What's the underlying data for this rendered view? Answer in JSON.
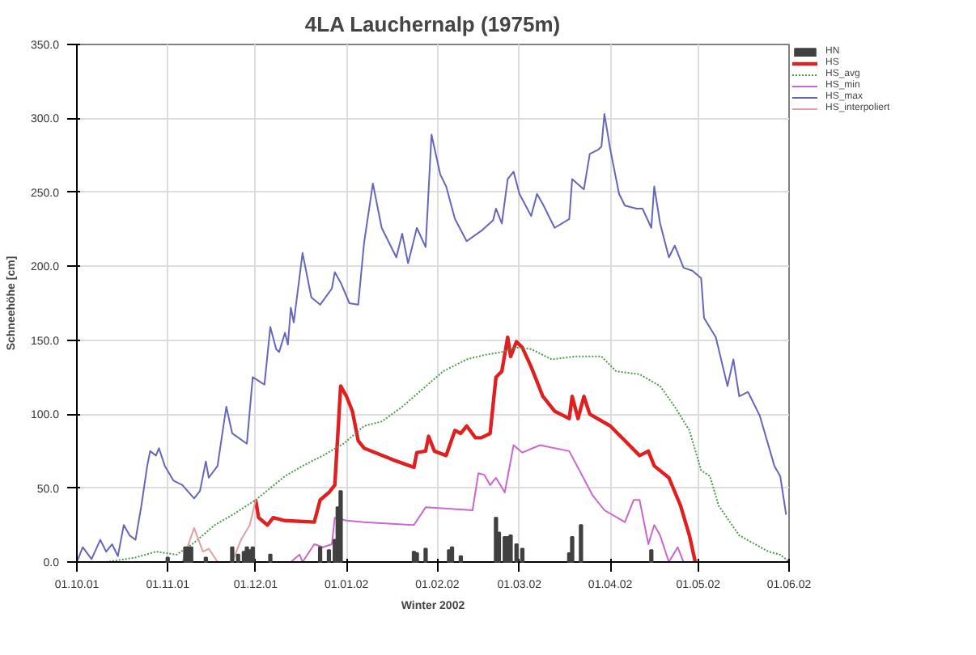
{
  "chart_data": {
    "type": "line",
    "title": "4LA Lauchernalp (1975m)",
    "xlabel": "Winter 2002",
    "ylabel": "Schneehöhe [cm]",
    "xlim": [
      "2001-10-01",
      "2002-06-01"
    ],
    "xticks": [
      {
        "value": "2001-10-01",
        "label": "01.10.01"
      },
      {
        "value": "2001-11-01",
        "label": "01.11.01"
      },
      {
        "value": "2001-12-01",
        "label": "01.12.01"
      },
      {
        "value": "2002-01-01",
        "label": "01.01.02"
      },
      {
        "value": "2002-02-01",
        "label": "01.02.02"
      },
      {
        "value": "2002-03-01",
        "label": "01.03.02"
      },
      {
        "value": "2002-04-01",
        "label": "01.04.02"
      },
      {
        "value": "2002-05-01",
        "label": "01.05.02"
      },
      {
        "value": "2002-06-01",
        "label": "01.06.02"
      }
    ],
    "ylim": [
      0,
      350
    ],
    "yticks": [
      {
        "value": 0,
        "label": "0.0"
      },
      {
        "value": 50,
        "label": "50.0"
      },
      {
        "value": 100,
        "label": "100.0"
      },
      {
        "value": 150,
        "label": "150.0"
      },
      {
        "value": 200,
        "label": "200.0"
      },
      {
        "value": 250,
        "label": "250.0"
      },
      {
        "value": 300,
        "label": "300.0"
      },
      {
        "value": 350,
        "label": "350.0"
      }
    ],
    "grid": true,
    "legend": "top right",
    "marker": "none",
    "series": [
      {
        "name": "HN",
        "type": "bar",
        "color": "#404040",
        "x": [
          "2001-11-01",
          "2001-11-07",
          "2001-11-08",
          "2001-11-09",
          "2001-11-14",
          "2001-11-23",
          "2001-11-25",
          "2001-11-27",
          "2001-11-28",
          "2001-11-29",
          "2001-11-30",
          "2001-12-06",
          "2001-12-23",
          "2001-12-26",
          "2001-12-28",
          "2001-12-29",
          "2001-12-30",
          "2002-01-24",
          "2002-01-25",
          "2002-01-28",
          "2002-02-05",
          "2002-02-06",
          "2002-02-09",
          "2002-02-21",
          "2002-02-22",
          "2002-02-24",
          "2002-02-25",
          "2002-02-26",
          "2002-02-28",
          "2002-03-02",
          "2002-03-18",
          "2002-03-19",
          "2002-03-22",
          "2002-04-15"
        ],
        "values": [
          3,
          10,
          10,
          10,
          3,
          10,
          5,
          7,
          10,
          8,
          10,
          5,
          10,
          8,
          15,
          37,
          48,
          7,
          6,
          9,
          8,
          10,
          4,
          30,
          20,
          17,
          17,
          18,
          12,
          9,
          6,
          17,
          25,
          8
        ]
      },
      {
        "name": "HS",
        "type": "line",
        "color": "#e02020",
        "x": [
          "2001-12-01",
          "2001-12-02",
          "2001-12-05",
          "2001-12-07",
          "2001-12-11",
          "2001-12-21",
          "2001-12-23",
          "2001-12-26",
          "2001-12-28",
          "2001-12-29",
          "2001-12-30",
          "2002-01-01",
          "2002-01-03",
          "2002-01-05",
          "2002-01-07",
          "2002-01-17",
          "2002-01-24",
          "2002-01-25",
          "2002-01-28",
          "2002-01-29",
          "2002-01-31",
          "2002-02-04",
          "2002-02-07",
          "2002-02-09",
          "2002-02-11",
          "2002-02-14",
          "2002-02-16",
          "2002-02-19",
          "2002-02-21",
          "2002-02-23",
          "2002-02-25",
          "2002-02-26",
          "2002-02-28",
          "2002-03-02",
          "2002-03-05",
          "2002-03-09",
          "2002-03-13",
          "2002-03-18",
          "2002-03-19",
          "2002-03-21",
          "2002-03-23",
          "2002-03-25",
          "2002-04-01",
          "2002-04-06",
          "2002-04-11",
          "2002-04-14",
          "2002-04-16",
          "2002-04-21",
          "2002-04-25",
          "2002-04-28",
          "2002-04-30"
        ],
        "values": [
          42,
          30,
          25,
          30,
          28,
          27,
          42,
          47,
          52,
          85,
          119,
          112,
          102,
          82,
          77,
          69,
          64,
          74,
          75,
          85,
          75,
          72,
          89,
          87,
          92,
          84,
          84,
          87,
          125,
          129,
          152,
          139,
          149,
          145,
          132,
          112,
          102,
          97,
          112,
          97,
          112,
          100,
          92,
          82,
          72,
          75,
          65,
          57,
          38,
          18,
          0
        ]
      },
      {
        "name": "HS_avg",
        "type": "line",
        "line_style": "dotted",
        "color": "#4a9a4a",
        "x": [
          "2001-10-01",
          "2001-10-11",
          "2001-10-21",
          "2001-10-28",
          "2001-11-04",
          "2001-11-10",
          "2001-11-17",
          "2001-11-24",
          "2001-12-01",
          "2001-12-11",
          "2001-12-17",
          "2001-12-24",
          "2001-12-31",
          "2002-01-07",
          "2002-01-13",
          "2002-01-20",
          "2002-01-27",
          "2002-02-03",
          "2002-02-11",
          "2002-02-17",
          "2002-02-23",
          "2002-02-28",
          "2002-03-05",
          "2002-03-12",
          "2002-03-20",
          "2002-03-29",
          "2002-04-03",
          "2002-04-11",
          "2002-04-18",
          "2002-04-23",
          "2002-04-28",
          "2002-05-02",
          "2002-05-05",
          "2002-05-08",
          "2002-05-15",
          "2002-05-25",
          "2002-05-29",
          "2002-06-01"
        ],
        "values": [
          0,
          0,
          3,
          7,
          5,
          13,
          25,
          33,
          42,
          58,
          65,
          72,
          80,
          92,
          95,
          105,
          117,
          129,
          137,
          140,
          142,
          145,
          144,
          137,
          139,
          139,
          129,
          127,
          119,
          105,
          89,
          62,
          58,
          38,
          18,
          7,
          5,
          0
        ]
      },
      {
        "name": "HS_min",
        "type": "line",
        "color": "#cc66cc",
        "x": [
          "2001-10-01",
          "2001-12-13",
          "2001-12-16",
          "2001-12-17",
          "2001-12-21",
          "2001-12-24",
          "2001-12-27",
          "2001-12-28",
          "2002-01-01",
          "2002-01-07",
          "2002-01-24",
          "2002-01-28",
          "2002-02-13",
          "2002-02-15",
          "2002-02-17",
          "2002-02-19",
          "2002-02-21",
          "2002-02-24",
          "2002-02-27",
          "2002-03-02",
          "2002-03-08",
          "2002-03-18",
          "2002-03-26",
          "2002-03-30",
          "2002-04-06",
          "2002-04-09",
          "2002-04-11",
          "2002-04-14",
          "2002-04-16",
          "2002-04-18",
          "2002-04-21",
          "2002-04-24",
          "2002-04-26",
          "2002-06-01"
        ],
        "values": [
          0,
          0,
          5,
          0,
          12,
          10,
          12,
          30,
          28,
          27,
          25,
          37,
          35,
          60,
          59,
          52,
          57,
          47,
          79,
          74,
          79,
          75,
          45,
          35,
          27,
          42,
          42,
          12,
          25,
          18,
          0,
          10,
          0,
          0
        ]
      },
      {
        "name": "HS_max",
        "type": "line",
        "color": "#6666bb",
        "x": [
          "2001-10-01",
          "2001-10-03",
          "2001-10-06",
          "2001-10-09",
          "2001-10-11",
          "2001-10-13",
          "2001-10-15",
          "2001-10-17",
          "2001-10-19",
          "2001-10-21",
          "2001-10-23",
          "2001-10-25",
          "2001-10-26",
          "2001-10-28",
          "2001-10-29",
          "2001-10-31",
          "2001-11-03",
          "2001-11-06",
          "2001-11-10",
          "2001-11-12",
          "2001-11-14",
          "2001-11-15",
          "2001-11-18",
          "2001-11-20",
          "2001-11-21",
          "2001-11-23",
          "2001-11-28",
          "2001-11-30",
          "2001-12-04",
          "2001-12-06",
          "2001-12-08",
          "2001-12-09",
          "2001-12-11",
          "2001-12-12",
          "2001-12-13",
          "2001-12-14",
          "2001-12-17",
          "2001-12-20",
          "2001-12-23",
          "2001-12-27",
          "2001-12-28",
          "2001-12-30",
          "2002-01-02",
          "2002-01-05",
          "2002-01-07",
          "2002-01-10",
          "2002-01-13",
          "2002-01-18",
          "2002-01-20",
          "2002-01-22",
          "2002-01-25",
          "2002-01-28",
          "2002-01-30",
          "2002-02-02",
          "2002-02-04",
          "2002-02-07",
          "2002-02-11",
          "2002-02-16",
          "2002-02-20",
          "2002-02-21",
          "2002-02-23",
          "2002-02-25",
          "2002-02-27",
          "2002-03-01",
          "2002-03-05",
          "2002-03-07",
          "2002-03-09",
          "2002-03-13",
          "2002-03-18",
          "2002-03-19",
          "2002-03-23",
          "2002-03-25",
          "2002-03-28",
          "2002-03-29",
          "2002-03-30",
          "2002-04-01",
          "2002-04-04",
          "2002-04-06",
          "2002-04-10",
          "2002-04-12",
          "2002-04-15",
          "2002-04-16",
          "2002-04-18",
          "2002-04-21",
          "2002-04-23",
          "2002-04-26",
          "2002-04-29",
          "2002-05-02",
          "2002-05-03",
          "2002-05-07",
          "2002-05-11",
          "2002-05-13",
          "2002-05-15",
          "2002-05-18",
          "2002-05-22",
          "2002-05-27",
          "2002-05-29",
          "2002-05-31"
        ],
        "values": [
          0,
          10,
          2,
          15,
          7,
          12,
          4,
          25,
          18,
          15,
          38,
          65,
          75,
          72,
          77,
          65,
          55,
          52,
          43,
          48,
          68,
          57,
          65,
          92,
          105,
          87,
          80,
          125,
          120,
          159,
          144,
          142,
          155,
          147,
          172,
          162,
          209,
          179,
          174,
          185,
          196,
          189,
          175,
          174,
          216,
          256,
          226,
          206,
          222,
          202,
          226,
          213,
          289,
          262,
          254,
          232,
          217,
          224,
          231,
          239,
          229,
          259,
          264,
          249,
          234,
          249,
          242,
          226,
          232,
          259,
          252,
          276,
          279,
          281,
          303,
          279,
          249,
          241,
          239,
          239,
          226,
          254,
          229,
          206,
          214,
          199,
          197,
          192,
          165,
          152,
          119,
          137,
          112,
          115,
          99,
          65,
          58,
          32
        ]
      },
      {
        "name": "HS_interpoliert",
        "type": "line",
        "color": "#e0a0a0",
        "x": [
          "2001-11-06",
          "2001-11-10",
          "2001-11-13",
          "2001-11-15",
          "2001-11-18",
          "2001-11-23",
          "2001-11-26",
          "2001-11-29",
          "2001-12-01"
        ],
        "values": [
          0,
          23,
          7,
          9,
          0,
          0,
          15,
          25,
          42
        ]
      }
    ]
  }
}
